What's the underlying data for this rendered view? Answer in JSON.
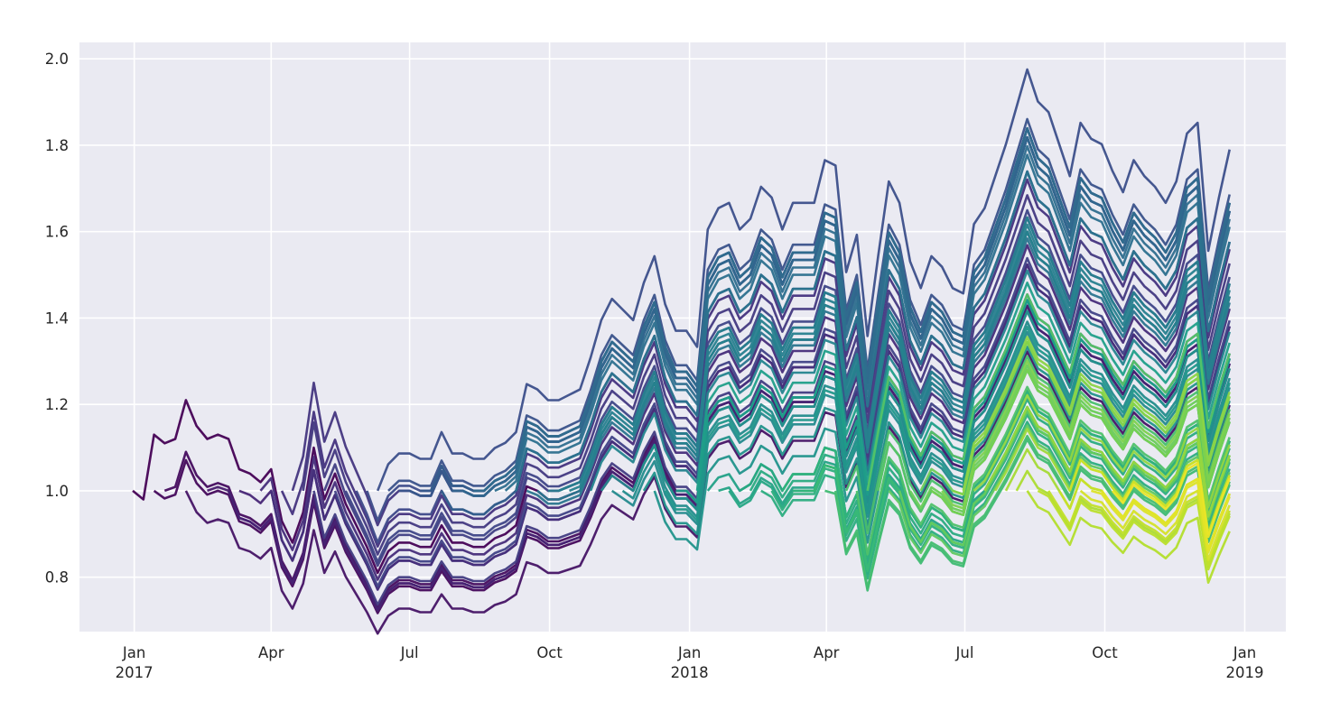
{
  "chart_data": {
    "type": "line",
    "title": "",
    "xlabel": "",
    "ylabel": "",
    "grid": true,
    "legend": "none",
    "colormap": "viridis",
    "frequency": "weekly",
    "first_point_date": "2017-01-01",
    "normalization": "each series = base_index[t] / base_index[start_week], so every series starts at 1.0",
    "base_index": [
      1.0,
      0.98,
      1.13,
      1.11,
      1.12,
      1.21,
      1.15,
      1.12,
      1.13,
      1.12,
      1.05,
      1.04,
      1.02,
      1.05,
      0.93,
      0.88,
      0.95,
      1.1,
      0.98,
      1.04,
      0.97,
      0.92,
      0.87,
      0.81,
      0.86,
      0.88,
      0.88,
      0.87,
      0.87,
      0.92,
      0.88,
      0.88,
      0.87,
      0.87,
      0.89,
      0.9,
      0.92,
      1.01,
      1.0,
      0.98,
      0.98,
      0.99,
      1.0,
      1.06,
      1.13,
      1.17,
      1.15,
      1.13,
      1.2,
      1.25,
      1.16,
      1.11,
      1.11,
      1.08,
      1.3,
      1.34,
      1.35,
      1.3,
      1.32,
      1.38,
      1.36,
      1.3,
      1.35,
      1.35,
      1.35,
      1.43,
      1.42,
      1.22,
      1.29,
      1.1,
      1.25,
      1.39,
      1.35,
      1.24,
      1.19,
      1.25,
      1.23,
      1.19,
      1.18,
      1.31,
      1.34,
      1.4,
      1.46,
      1.53,
      1.6,
      1.54,
      1.52,
      1.46,
      1.4,
      1.5,
      1.47,
      1.46,
      1.41,
      1.37,
      1.43,
      1.4,
      1.38,
      1.35,
      1.39,
      1.48,
      1.5,
      1.26,
      1.36,
      1.45
    ],
    "series_start_weeks": [
      0,
      2,
      3,
      5,
      7,
      9,
      10,
      12,
      13,
      14,
      15,
      16,
      17,
      18,
      19,
      20,
      21,
      22,
      23,
      24,
      25,
      26,
      27,
      28,
      29,
      30,
      31,
      32,
      33,
      34,
      35,
      36,
      37,
      38,
      39,
      40,
      41,
      42,
      43,
      44,
      45,
      46,
      47,
      48,
      49,
      50,
      51,
      52,
      53,
      54,
      55,
      56,
      57,
      58,
      59,
      60,
      61,
      62,
      63,
      64,
      65,
      66,
      67,
      68,
      69,
      70,
      71,
      72,
      73,
      74,
      75,
      76,
      77,
      78,
      79,
      80,
      81,
      82,
      83,
      84,
      85,
      86,
      87,
      88,
      89,
      90,
      91,
      92
    ],
    "ylim": [
      0.674,
      2.038
    ],
    "xlim_days_from_2017_01_01": [
      -36,
      757
    ],
    "y_ticks": [
      {
        "value": 0.8,
        "label": "0.8"
      },
      {
        "value": 1.0,
        "label": "1.0"
      },
      {
        "value": 1.2,
        "label": "1.2"
      },
      {
        "value": 1.4,
        "label": "1.4"
      },
      {
        "value": 1.6,
        "label": "1.6"
      },
      {
        "value": 1.8,
        "label": "1.8"
      },
      {
        "value": 2.0,
        "label": "2.0"
      }
    ],
    "x_ticks": [
      {
        "day": 0,
        "label": "Jan",
        "year": "2017"
      },
      {
        "day": 90,
        "label": "Apr",
        "year": ""
      },
      {
        "day": 181,
        "label": "Jul",
        "year": ""
      },
      {
        "day": 273,
        "label": "Oct",
        "year": ""
      },
      {
        "day": 365,
        "label": "Jan",
        "year": "2018"
      },
      {
        "day": 455,
        "label": "Apr",
        "year": ""
      },
      {
        "day": 546,
        "label": "Jul",
        "year": ""
      },
      {
        "day": 638,
        "label": "Oct",
        "year": ""
      },
      {
        "day": 730,
        "label": "Jan",
        "year": "2019"
      }
    ]
  },
  "colors": {
    "plot_background": "#eaeaf2",
    "grid": "#ffffff",
    "tick_text": "#262626"
  }
}
